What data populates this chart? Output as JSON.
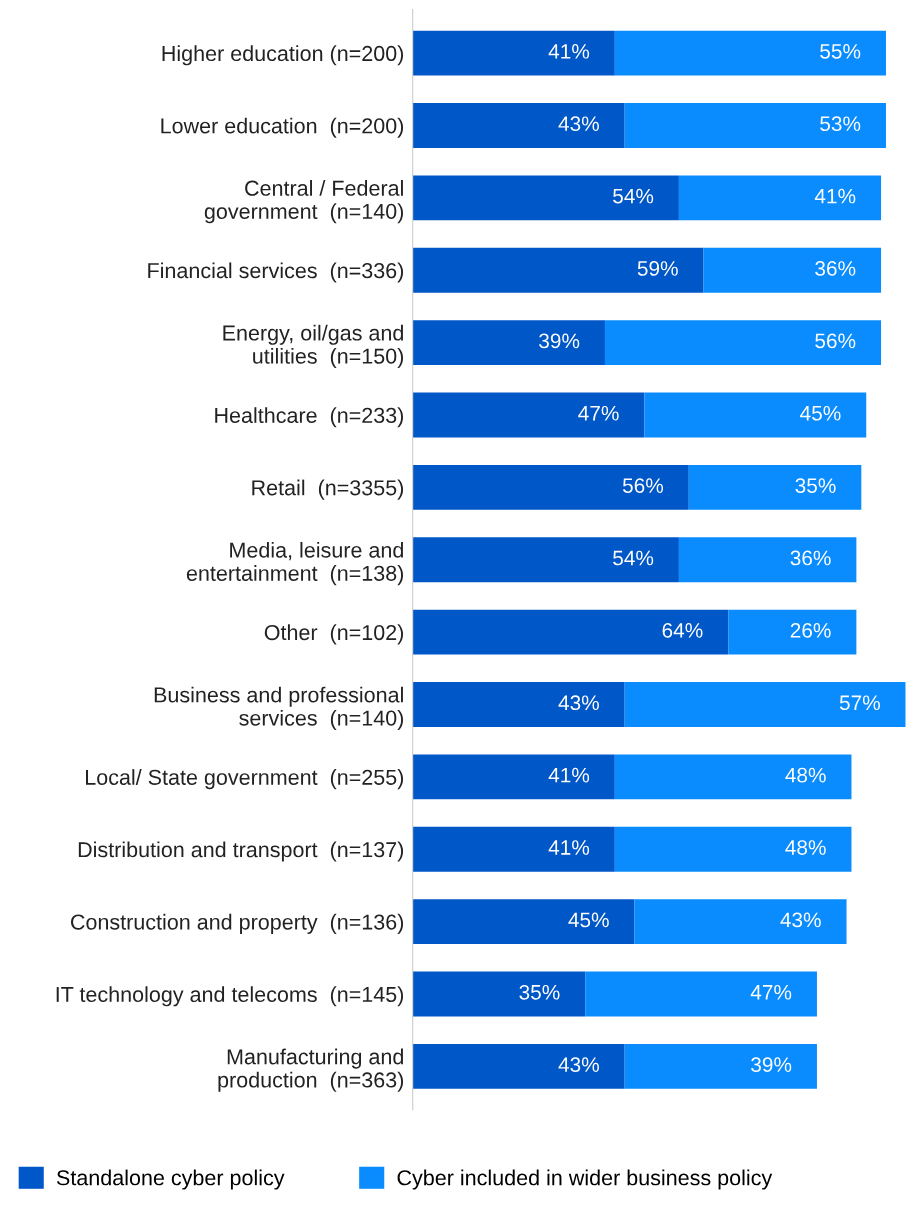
{
  "chart_data": {
    "type": "bar",
    "orientation": "horizontal",
    "stacked": true,
    "legend": "bottom left",
    "categories": [
      "Higher education (n=200)",
      "Lower education  (n=200)",
      "Central / Federal\ngovernment  (n=140)",
      "Financial services  (n=336)",
      "Energy, oil/gas and\nutilities  (n=150)",
      "Healthcare  (n=233)",
      "Retail  (n=3355)",
      "Media, leisure and\nentertainment  (n=138)",
      "Other  (n=102)",
      "Business and professional\nservices  (n=140)",
      "Local/ State government  (n=255)",
      "Distribution and transport  (n=137)",
      "Construction and property  (n=136)",
      "IT technology and telecoms  (n=145)",
      "Manufacturing and\nproduction  (n=363)"
    ],
    "series": [
      {
        "name": "Standalone cyber policy",
        "color": "#0057c8",
        "values": [
          41,
          43,
          54,
          59,
          39,
          47,
          56,
          54,
          64,
          43,
          41,
          41,
          45,
          35,
          43
        ],
        "value_labels": [
          "41%",
          "43%",
          "54%",
          "59%",
          "39%",
          "47%",
          "56%",
          "54%",
          "64%",
          "43%",
          "41%",
          "41%",
          "45%",
          "35%",
          "43%"
        ]
      },
      {
        "name": "Cyber included in wider business policy",
        "color": "#0a8cff",
        "values": [
          55,
          53,
          41,
          36,
          56,
          45,
          35,
          36,
          26,
          57,
          48,
          48,
          43,
          47,
          39
        ],
        "value_labels": [
          "55%",
          "53%",
          "41%",
          "36%",
          "56%",
          "45%",
          "35%",
          "36%",
          "26%",
          "57%",
          "48%",
          "48%",
          "43%",
          "47%",
          "39%"
        ]
      }
    ]
  }
}
